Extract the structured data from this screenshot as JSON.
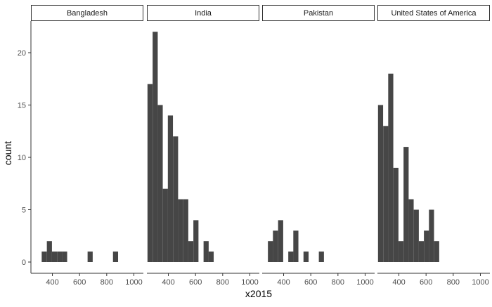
{
  "chart_data": {
    "type": "bar",
    "xlabel": "x2015",
    "ylabel": "count",
    "ylim": [
      0,
      23
    ],
    "y_ticks": [
      0,
      5,
      10,
      15,
      20
    ],
    "x_ticks": [
      400,
      600,
      800,
      1000
    ],
    "xlim": [
      242,
      1070
    ],
    "bin_width": 37.5,
    "bar_color": "#464646",
    "grid": false,
    "facets": [
      {
        "label": "Bangladesh",
        "bins": [
          {
            "x": 340,
            "count": 1
          },
          {
            "x": 378,
            "count": 2
          },
          {
            "x": 415,
            "count": 1
          },
          {
            "x": 453,
            "count": 1
          },
          {
            "x": 490,
            "count": 1
          },
          {
            "x": 678,
            "count": 1
          },
          {
            "x": 865,
            "count": 1
          }
        ]
      },
      {
        "label": "India",
        "bins": [
          {
            "x": 265,
            "count": 17
          },
          {
            "x": 303,
            "count": 22
          },
          {
            "x": 340,
            "count": 15
          },
          {
            "x": 378,
            "count": 7
          },
          {
            "x": 415,
            "count": 14
          },
          {
            "x": 453,
            "count": 12
          },
          {
            "x": 490,
            "count": 6
          },
          {
            "x": 528,
            "count": 6
          },
          {
            "x": 565,
            "count": 2
          },
          {
            "x": 603,
            "count": 4
          },
          {
            "x": 678,
            "count": 2
          },
          {
            "x": 715,
            "count": 1
          }
        ]
      },
      {
        "label": "Pakistan",
        "bins": [
          {
            "x": 303,
            "count": 2
          },
          {
            "x": 340,
            "count": 3
          },
          {
            "x": 378,
            "count": 4
          },
          {
            "x": 453,
            "count": 1
          },
          {
            "x": 490,
            "count": 3
          },
          {
            "x": 565,
            "count": 1
          },
          {
            "x": 678,
            "count": 1
          }
        ]
      },
      {
        "label": "United States of America",
        "bins": [
          {
            "x": 265,
            "count": 15
          },
          {
            "x": 303,
            "count": 13
          },
          {
            "x": 340,
            "count": 18
          },
          {
            "x": 378,
            "count": 9
          },
          {
            "x": 415,
            "count": 2
          },
          {
            "x": 453,
            "count": 11
          },
          {
            "x": 490,
            "count": 6
          },
          {
            "x": 528,
            "count": 5
          },
          {
            "x": 565,
            "count": 2
          },
          {
            "x": 603,
            "count": 3
          },
          {
            "x": 640,
            "count": 5
          },
          {
            "x": 678,
            "count": 2
          }
        ]
      }
    ]
  }
}
